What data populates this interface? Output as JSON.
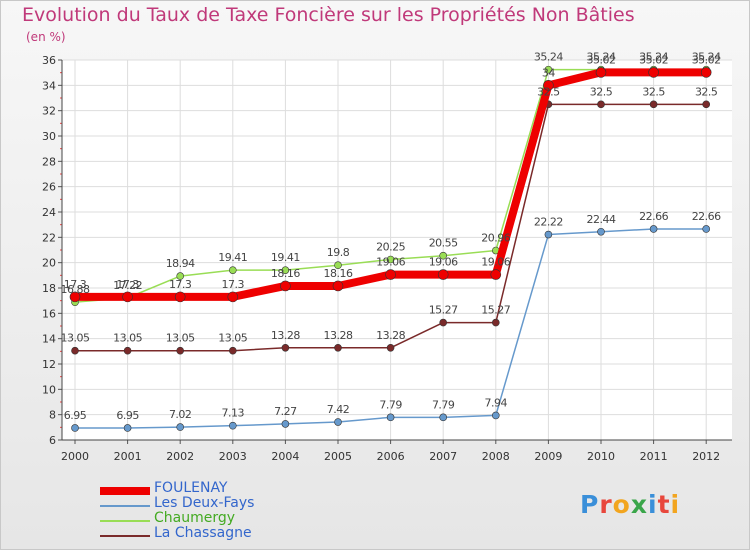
{
  "chart_data": {
    "type": "line",
    "title": "Evolution du Taux de Taxe Foncière sur les Propriétés Non Bâties",
    "ylabel": "(en %)",
    "x": [
      "2000",
      "2001",
      "2002",
      "2003",
      "2004",
      "2005",
      "2006",
      "2007",
      "2008",
      "2009",
      "2010",
      "2011",
      "2012"
    ],
    "ylim": [
      6,
      36
    ],
    "yticks": [
      6,
      8,
      10,
      12,
      14,
      16,
      18,
      20,
      22,
      24,
      26,
      28,
      30,
      32,
      34,
      36
    ],
    "grid": true,
    "legend_position": "bottom-left",
    "series": [
      {
        "name": "FOULENAY",
        "color": "#ee0000",
        "values": [
          17.3,
          17.3,
          17.3,
          17.3,
          18.16,
          18.16,
          19.06,
          19.06,
          19.06,
          34.0,
          35.02,
          35.02,
          35.02
        ],
        "labels": [
          "17.3",
          "17.3",
          "17.3",
          "17.3",
          "18.16",
          "18.16",
          "19.06",
          "19.06",
          "19.06",
          "34",
          "35.02",
          "35.02",
          "35.02"
        ]
      },
      {
        "name": "Les Deux-Fays",
        "color": "#6699cc",
        "values": [
          6.95,
          6.95,
          7.02,
          7.13,
          7.27,
          7.42,
          7.79,
          7.79,
          7.94,
          22.22,
          22.44,
          22.66,
          22.66
        ],
        "labels": [
          "6.95",
          "6.95",
          "7.02",
          "7.13",
          "7.27",
          "7.42",
          "7.79",
          "7.79",
          "7.94",
          "22.22",
          "22.44",
          "22.66",
          "22.66"
        ]
      },
      {
        "name": "Chaumergy",
        "color": "#99dd55",
        "values": [
          16.88,
          17.22,
          18.94,
          19.41,
          19.41,
          19.8,
          20.25,
          20.55,
          20.96,
          35.24,
          35.24,
          35.24,
          35.24
        ],
        "labels": [
          "16.88",
          "17.22",
          "18.94",
          "19.41",
          "19.41",
          "19.8",
          "20.25",
          "20.55",
          "20.96",
          "35.24",
          "35.24",
          "35.24",
          "35.24"
        ]
      },
      {
        "name": "La Chassagne",
        "color": "#7a2a2a",
        "values": [
          13.05,
          13.05,
          13.05,
          13.05,
          13.28,
          13.28,
          13.28,
          15.27,
          15.27,
          32.5,
          32.5,
          32.5,
          32.5
        ],
        "labels": [
          "13.05",
          "13.05",
          "13.05",
          "13.05",
          "13.28",
          "13.28",
          "13.28",
          "15.27",
          "15.27",
          "32.5",
          "32.5",
          "32.5",
          "32.5"
        ]
      }
    ]
  },
  "branding": {
    "logo_text": "Proxiti"
  }
}
